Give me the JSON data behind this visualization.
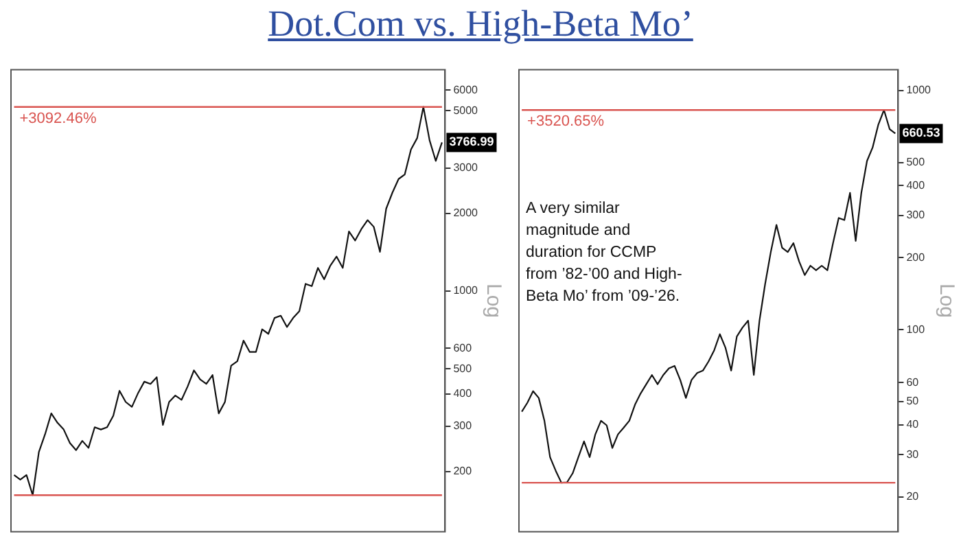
{
  "chart_data": [
    {
      "type": "line",
      "title": "Dot.Com vs. High-Beta Mo’",
      "ylabel": "Log",
      "ylim": [
        117,
        7200
      ],
      "yticks": [
        200,
        300,
        400,
        500,
        600,
        1000,
        2000,
        3000,
        5000,
        6000
      ],
      "log": true,
      "grid": false,
      "legend": false,
      "tick_labels": "y",
      "marker": "none",
      "line_style": "solid",
      "categories": [
        null,
        null,
        null,
        null,
        null,
        null,
        null,
        null,
        null,
        null,
        null,
        null,
        null,
        null,
        null,
        null,
        null,
        null,
        null,
        null,
        null,
        null,
        null,
        null,
        null,
        null,
        null,
        null,
        null,
        null,
        null,
        null,
        null,
        null,
        null,
        null,
        null,
        null,
        null,
        null,
        null,
        null,
        null,
        null,
        null,
        null,
        null,
        null,
        null,
        null,
        null,
        null,
        null,
        null,
        null,
        null,
        null,
        null,
        null,
        null,
        null,
        null,
        null,
        null,
        null,
        null,
        null,
        null,
        null,
        null
      ],
      "series": [
        {
          "color": "#111111",
          "values": [
            194,
            186,
            194,
            162,
            238,
            279,
            336,
            309,
            291,
            258,
            242,
            263,
            247,
            297,
            291,
            297,
            329,
            411,
            372,
            356,
            403,
            446,
            437,
            464,
            303,
            372,
            394,
            379,
            428,
            493,
            455,
            437,
            473,
            336,
            372,
            514,
            535,
            643,
            581,
            581,
            711,
            683,
            787,
            803,
            726,
            787,
            836,
            1067,
            1045,
            1230,
            1111,
            1256,
            1361,
            1230,
            1702,
            1570,
            1738,
            1884,
            1774,
            1419,
            2085,
            2404,
            2717,
            2831,
            3535,
            3915,
            5170,
            3837,
            3192,
            3766.99
          ]
        }
      ],
      "ref_lines": [
        {
          "axis": "y",
          "value": 5170,
          "color": "#d9534f",
          "line_style": "solid"
        },
        {
          "axis": "y",
          "value": 162,
          "color": "#d9534f",
          "line_style": "solid"
        }
      ],
      "annotations": [
        "+3092.46%",
        {
          "text": "3766.99",
          "y": 3766.99
        }
      ]
    },
    {
      "type": "line",
      "ylabel": "Log",
      "ylim": [
        14.3,
        1220
      ],
      "yticks": [
        20,
        30,
        40,
        50,
        60,
        100,
        200,
        300,
        400,
        500,
        1000
      ],
      "log": true,
      "grid": false,
      "legend": false,
      "tick_labels": "y",
      "marker": "none",
      "line_style": "solid",
      "categories": [
        null,
        null,
        null,
        null,
        null,
        null,
        null,
        null,
        null,
        null,
        null,
        null,
        null,
        null,
        null,
        null,
        null,
        null,
        null,
        null,
        null,
        null,
        null,
        null,
        null,
        null,
        null,
        null,
        null,
        null,
        null,
        null,
        null,
        null,
        null,
        null,
        null,
        null,
        null,
        null,
        null,
        null,
        null,
        null,
        null,
        null,
        null,
        null,
        null,
        null,
        null,
        null,
        null,
        null,
        null,
        null,
        null,
        null,
        null,
        null,
        null,
        null,
        null,
        null,
        null,
        null,
        null
      ],
      "series": [
        {
          "color": "#111111",
          "values": [
            45.4,
            49.5,
            55.3,
            51.8,
            41.6,
            29.3,
            25.7,
            22.9,
            23.0,
            25.1,
            29.3,
            34.1,
            29.3,
            36.5,
            41.6,
            39.8,
            32.0,
            36.5,
            38.9,
            41.6,
            48.5,
            54.1,
            59.1,
            64.6,
            59.1,
            64.6,
            68.9,
            70.5,
            61.6,
            51.8,
            61.6,
            65.9,
            67.4,
            73.6,
            82.0,
            95.7,
            83.9,
            67.4,
            93.6,
            102,
            109,
            64.6,
            109,
            155,
            211,
            274,
            220,
            211,
            230,
            193,
            169,
            185,
            177,
            185,
            177,
            230,
            293,
            287,
            373,
            235,
            373,
            507,
            578,
            719,
            828,
            689,
            660.53
          ]
        }
      ],
      "ref_lines": [
        {
          "axis": "y",
          "value": 828,
          "color": "#d9534f",
          "line_style": "solid"
        },
        {
          "axis": "y",
          "value": 22.9,
          "color": "#d9534f",
          "line_style": "solid"
        }
      ],
      "annotations": [
        "+3520.65%",
        {
          "text": "660.53",
          "y": 660.53
        },
        "A very similar magnitude and duration for CCMP from ’82-’00 and High-Beta Mo’ from ’09-’26."
      ]
    }
  ]
}
